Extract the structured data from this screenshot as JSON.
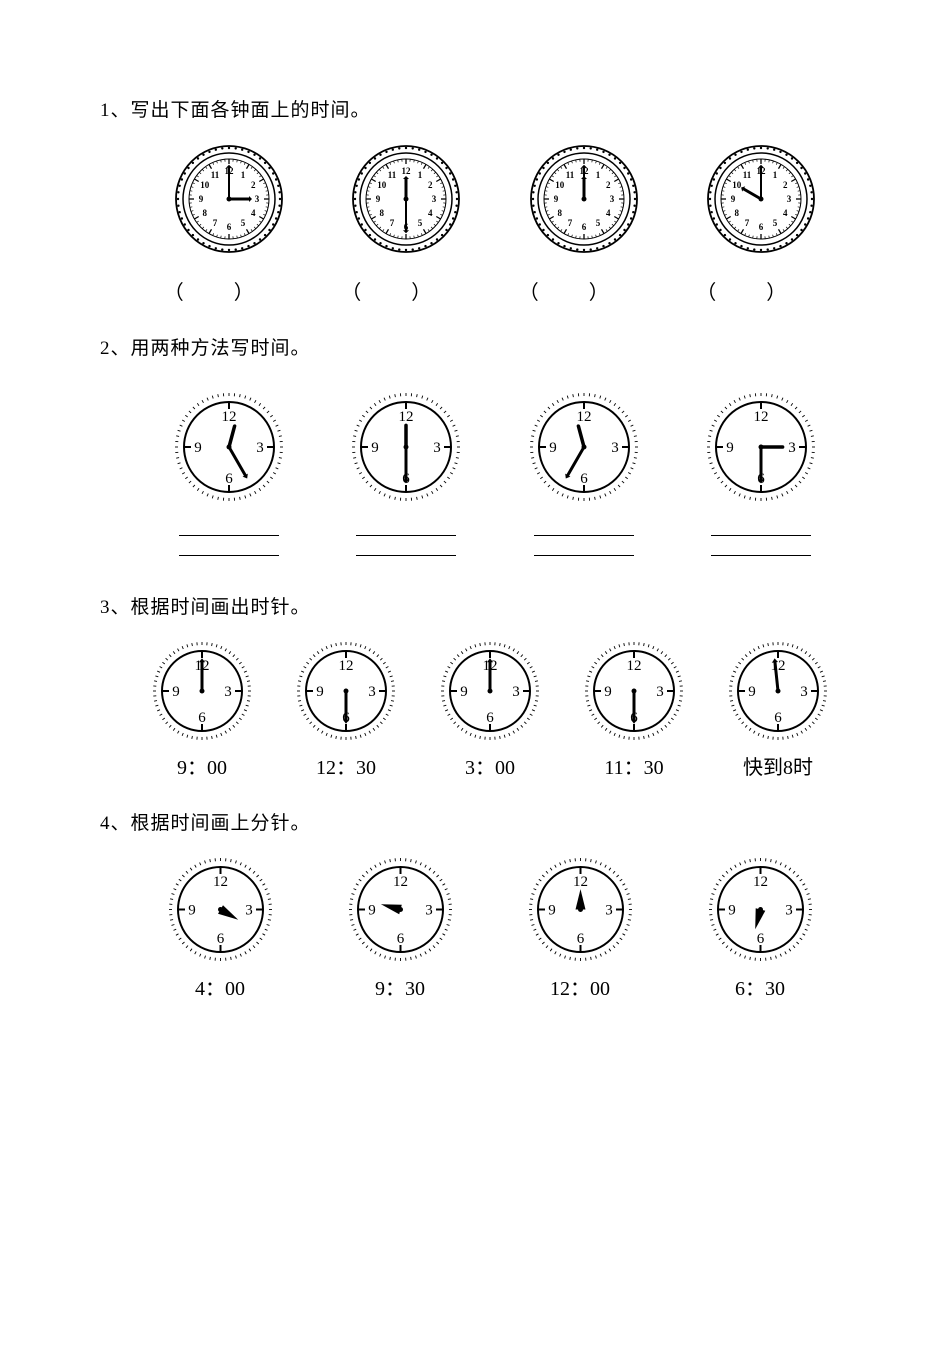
{
  "q1": {
    "prompt": "1、写出下面各钟面上的时间。",
    "blank_left": "（",
    "blank_right": "）",
    "clocks": [
      {
        "style": "ornate",
        "hour_angle": 90,
        "minute_angle": 0,
        "size": 110
      },
      {
        "style": "ornate",
        "hour_angle": 0,
        "minute_angle": 180,
        "size": 110
      },
      {
        "style": "ornate",
        "hour_angle": 0,
        "minute_angle": 0,
        "size": 110
      },
      {
        "style": "ornate",
        "hour_angle": -60,
        "minute_angle": 0,
        "size": 110
      }
    ]
  },
  "q2": {
    "prompt": "2、用两种方法写时间。",
    "clocks": [
      {
        "style": "simple",
        "hour_angle": 15,
        "minute_angle": 150,
        "size": 110,
        "minute_visible": true
      },
      {
        "style": "simple",
        "hour_angle": 0,
        "minute_angle": 180,
        "size": 110,
        "minute_visible": true
      },
      {
        "style": "simple",
        "hour_angle": -15,
        "minute_angle": 210,
        "size": 110,
        "minute_visible": true
      },
      {
        "style": "simple",
        "hour_angle": 90,
        "minute_angle": 180,
        "size": 110,
        "minute_visible": true
      }
    ]
  },
  "q3": {
    "prompt": "3、根据时间画出时针。",
    "clocks": [
      {
        "style": "simple",
        "minute_angle": 0,
        "label": "9：00",
        "size": 100,
        "minute_visible": true,
        "hour_visible": false
      },
      {
        "style": "simple",
        "minute_angle": 180,
        "label": "12：30",
        "size": 100,
        "minute_visible": true,
        "hour_visible": false
      },
      {
        "style": "simple",
        "minute_angle": 0,
        "label": "3：00",
        "size": 100,
        "minute_visible": true,
        "hour_visible": false
      },
      {
        "style": "simple",
        "minute_angle": 180,
        "label": "11：30",
        "size": 100,
        "minute_visible": true,
        "hour_visible": false
      },
      {
        "style": "simple",
        "minute_angle": -6,
        "label": "快到8时",
        "size": 100,
        "minute_visible": true,
        "hour_visible": false
      }
    ]
  },
  "q4": {
    "prompt": "4、根据时间画上分针。",
    "clocks": [
      {
        "style": "simple",
        "hour_angle": 120,
        "label": "4：00",
        "size": 105,
        "minute_visible": false,
        "hour_visible": true,
        "hour_thick": true
      },
      {
        "style": "simple",
        "hour_angle": -75,
        "label": "9：30",
        "size": 105,
        "minute_visible": false,
        "hour_visible": true,
        "hour_thick": true
      },
      {
        "style": "simple",
        "hour_angle": 0,
        "label": "12：00",
        "size": 105,
        "minute_visible": false,
        "hour_visible": true,
        "hour_thick": true
      },
      {
        "style": "simple",
        "hour_angle": 195,
        "label": "6：30",
        "size": 105,
        "minute_visible": false,
        "hour_visible": true,
        "hour_thick": true
      }
    ]
  },
  "colors": {
    "stroke": "#000000",
    "bg": "#ffffff"
  }
}
